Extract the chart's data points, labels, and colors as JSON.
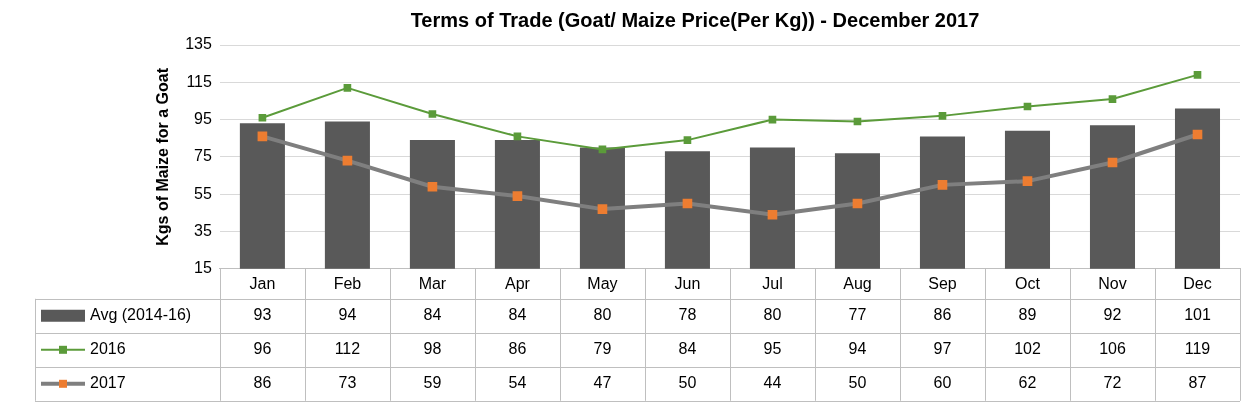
{
  "chart_data": {
    "type": "bar",
    "title": "Terms of Trade (Goat/ Maize Price(Per Kg)) - December 2017",
    "ylabel": "Kgs of Maize for a Goat",
    "categories": [
      "Jan",
      "Feb",
      "Mar",
      "Apr",
      "May",
      "Jun",
      "Jul",
      "Aug",
      "Sep",
      "Oct",
      "Nov",
      "Dec"
    ],
    "series": [
      {
        "name": "Avg (2014-16)",
        "color": "#595959",
        "values": [
          93,
          94,
          84,
          84,
          80,
          78,
          80,
          77,
          86,
          89,
          92,
          101
        ]
      },
      {
        "name": "2016",
        "type": "line",
        "color": "#5b9b3a",
        "marker": "square",
        "values": [
          96,
          112,
          98,
          86,
          79,
          84,
          95,
          94,
          97,
          102,
          106,
          119
        ]
      },
      {
        "name": "2017",
        "type": "line",
        "color": "#7f7f7f",
        "colors": [
          "#ed7d31",
          "#ed7d31",
          "#ed7d31",
          "#ed7d31",
          "#ed7d31",
          "#ed7d31",
          "#ed7d31",
          "#ed7d31",
          "#ed7d31",
          "#ed7d31",
          "#ed7d31",
          "#ed7d31"
        ],
        "marker": "square",
        "values": [
          86,
          73,
          59,
          54,
          47,
          50,
          44,
          50,
          60,
          62,
          72,
          87
        ]
      }
    ],
    "ylim": [
      15,
      135
    ],
    "yticks": [
      15,
      35,
      55,
      75,
      95,
      115,
      135
    ],
    "grid": "y",
    "legend": "bottom",
    "data_labels": true
  }
}
